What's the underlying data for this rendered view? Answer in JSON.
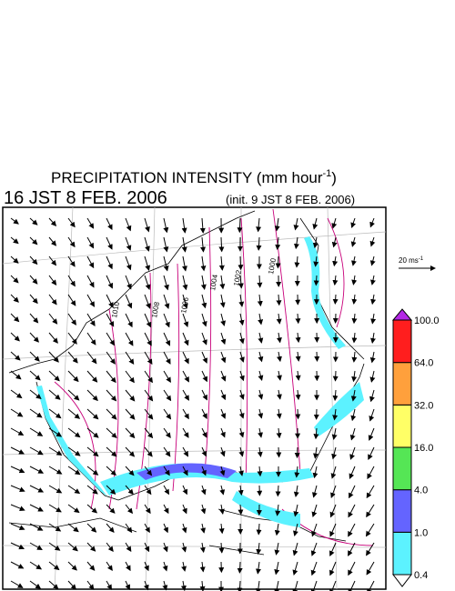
{
  "header": {
    "title": "PRECIPITATION INTENSITY (mm hour",
    "title_exponent": "-1",
    "title_close": ")",
    "valid_time": "16 JST 8 FEB. 2006",
    "init_time": "(init. 9 JST 8 FEB. 2006)"
  },
  "wind_scale": {
    "label": "20 ms",
    "exponent": "-1"
  },
  "isobar_labels": [
    "1010",
    "1008",
    "1006",
    "1004",
    "1002",
    "1000"
  ],
  "colorbar": {
    "levels": [
      {
        "value": 0.4,
        "label": "0.4"
      },
      {
        "value": 1,
        "label": "1.0"
      },
      {
        "value": 4,
        "label": "4.0"
      },
      {
        "value": 16,
        "label": "16.0"
      },
      {
        "value": 32,
        "label": "32.0"
      },
      {
        "value": 64,
        "label": "64.0"
      },
      {
        "value": 100,
        "label": "100.0"
      }
    ],
    "colors": [
      "#ffffff",
      "#5cf2ff",
      "#6464ff",
      "#55e655",
      "#ffff66",
      "#ffa03c",
      "#ff1e1e",
      "#b428e6"
    ]
  }
}
